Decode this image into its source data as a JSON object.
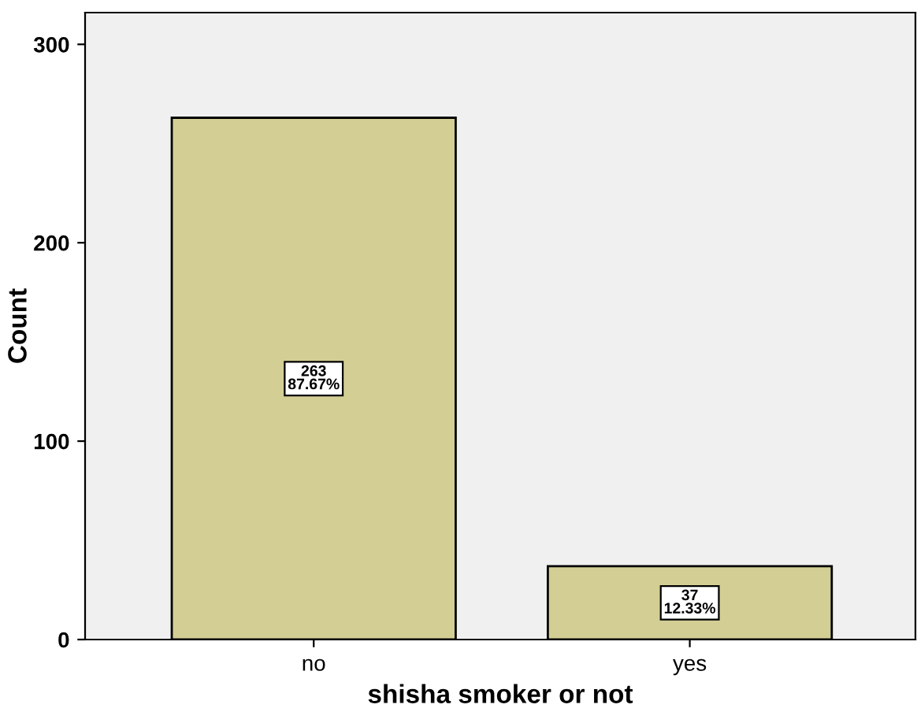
{
  "chart_data": {
    "type": "bar",
    "xlabel": "shisha smoker or not",
    "ylabel": "Count",
    "categories": [
      "no",
      "yes"
    ],
    "values": [
      263,
      37
    ],
    "color": "#d3ce94",
    "value_labels": [
      "263\n87.67%",
      "37\n12.33%"
    ],
    "ylim": [
      0,
      316
    ],
    "yticks": [
      0,
      100,
      200,
      300
    ],
    "grid": false,
    "legend": false
  }
}
